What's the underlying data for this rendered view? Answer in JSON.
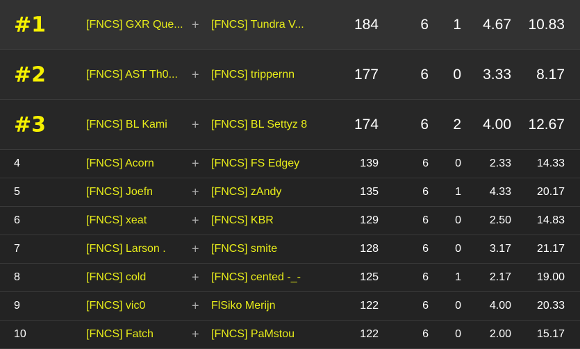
{
  "rows": [
    {
      "rank": "#1",
      "p1": "[FNCS] GXR Que...",
      "p2": "[FNCS] Tundra V...",
      "pts": "184",
      "c2": "6",
      "c3": "1",
      "c4": "4.67",
      "c5": "10.83"
    },
    {
      "rank": "#2",
      "p1": "[FNCS] AST Th0...",
      "p2": "[FNCS] trippernn",
      "pts": "177",
      "c2": "6",
      "c3": "0",
      "c4": "3.33",
      "c5": "8.17"
    },
    {
      "rank": "#3",
      "p1": "[FNCS] BL Kami",
      "p2": "[FNCS] BL Settyz 8",
      "pts": "174",
      "c2": "6",
      "c3": "2",
      "c4": "4.00",
      "c5": "12.67"
    },
    {
      "rank": "4",
      "p1": "[FNCS] Acorn",
      "p2": "[FNCS] FS Edgey",
      "pts": "139",
      "c2": "6",
      "c3": "0",
      "c4": "2.33",
      "c5": "14.33"
    },
    {
      "rank": "5",
      "p1": "[FNCS] Joefn",
      "p2": "[FNCS] zAndy",
      "pts": "135",
      "c2": "6",
      "c3": "1",
      "c4": "4.33",
      "c5": "20.17"
    },
    {
      "rank": "6",
      "p1": "[FNCS] xeat",
      "p2": "[FNCS] KBR",
      "pts": "129",
      "c2": "6",
      "c3": "0",
      "c4": "2.50",
      "c5": "14.83"
    },
    {
      "rank": "7",
      "p1": "[FNCS] Larson .",
      "p2": "[FNCS] smite",
      "pts": "128",
      "c2": "6",
      "c3": "0",
      "c4": "3.17",
      "c5": "21.17"
    },
    {
      "rank": "8",
      "p1": "[FNCS] cold",
      "p2": "[FNCS] cented -_-",
      "pts": "125",
      "c2": "6",
      "c3": "1",
      "c4": "2.17",
      "c5": "19.00"
    },
    {
      "rank": "9",
      "p1": "[FNCS] vic0",
      "p2": "FlSiko Merijn",
      "pts": "122",
      "c2": "6",
      "c3": "0",
      "c4": "4.00",
      "c5": "20.33"
    },
    {
      "rank": "10",
      "p1": "[FNCS] Fatch",
      "p2": "[FNCS] PaMstou",
      "pts": "122",
      "c2": "6",
      "c3": "0",
      "c4": "2.00",
      "c5": "15.17"
    }
  ],
  "separator": "+",
  "accent": "#f5f000"
}
